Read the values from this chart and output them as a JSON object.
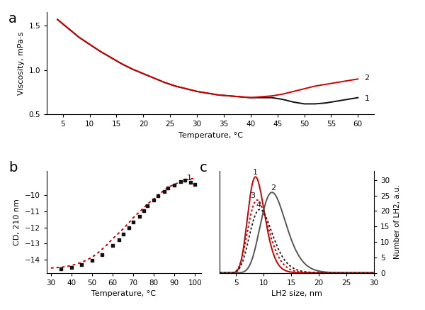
{
  "panel_a": {
    "label": "a",
    "temp_black": [
      4,
      6,
      8,
      10,
      12,
      14,
      16,
      18,
      20,
      22,
      24,
      26,
      28,
      30,
      32,
      34,
      36,
      38,
      40,
      42,
      44,
      46,
      48,
      50,
      52,
      54,
      56,
      58,
      60
    ],
    "visc_black": [
      1.57,
      1.47,
      1.37,
      1.29,
      1.21,
      1.14,
      1.07,
      1.01,
      0.96,
      0.91,
      0.86,
      0.82,
      0.79,
      0.76,
      0.74,
      0.72,
      0.71,
      0.7,
      0.69,
      0.69,
      0.69,
      0.67,
      0.64,
      0.62,
      0.62,
      0.63,
      0.65,
      0.67,
      0.69
    ],
    "temp_red": [
      4,
      6,
      8,
      10,
      12,
      14,
      16,
      18,
      20,
      22,
      24,
      26,
      28,
      30,
      32,
      34,
      36,
      38,
      40,
      42,
      44,
      46,
      48,
      50,
      52,
      54,
      56,
      58,
      60
    ],
    "visc_red": [
      1.57,
      1.47,
      1.37,
      1.29,
      1.21,
      1.14,
      1.07,
      1.01,
      0.96,
      0.91,
      0.86,
      0.82,
      0.79,
      0.76,
      0.74,
      0.72,
      0.71,
      0.7,
      0.69,
      0.7,
      0.71,
      0.73,
      0.76,
      0.79,
      0.82,
      0.84,
      0.86,
      0.88,
      0.9
    ],
    "xlabel": "Temperature, °C",
    "ylabel": "Viscosity, mPa·s",
    "xlim": [
      2,
      63
    ],
    "ylim": [
      0.5,
      1.65
    ],
    "xticks": [
      5,
      10,
      15,
      20,
      25,
      30,
      35,
      40,
      45,
      50,
      55,
      60
    ],
    "yticks": [
      0.5,
      1.0,
      1.5
    ],
    "line1_label": "1",
    "line2_label": "2"
  },
  "panel_b": {
    "label": "b",
    "temp_dots": [
      35,
      40,
      45,
      50,
      55,
      60,
      63,
      65,
      68,
      70,
      73,
      75,
      77,
      80,
      82,
      85,
      87,
      90,
      93,
      95,
      98,
      100
    ],
    "cd_dots": [
      -14.55,
      -14.45,
      -14.3,
      -14.05,
      -13.7,
      -13.1,
      -12.75,
      -12.4,
      -12.0,
      -11.65,
      -11.3,
      -10.95,
      -10.65,
      -10.3,
      -10.05,
      -9.78,
      -9.55,
      -9.38,
      -9.18,
      -9.08,
      -9.22,
      -9.35
    ],
    "temp_fit": [
      30,
      33,
      36,
      39,
      42,
      45,
      48,
      51,
      54,
      57,
      60,
      63,
      65,
      68,
      70,
      73,
      75,
      77,
      80,
      82,
      85,
      87,
      90,
      93,
      95,
      98,
      100
    ],
    "cd_fit": [
      -14.5,
      -14.48,
      -14.44,
      -14.38,
      -14.28,
      -14.15,
      -13.98,
      -13.75,
      -13.45,
      -13.1,
      -12.7,
      -12.35,
      -12.1,
      -11.7,
      -11.4,
      -11.05,
      -10.8,
      -10.55,
      -10.25,
      -10.0,
      -9.72,
      -9.52,
      -9.35,
      -9.18,
      -9.08,
      -9.0,
      -8.97
    ],
    "xlabel": "Temperature, °C",
    "ylabel": "CD, 210 nm",
    "xlim": [
      28,
      103
    ],
    "ylim": [
      -14.8,
      -8.5
    ],
    "xticks": [
      30,
      40,
      50,
      60,
      70,
      80,
      90,
      100
    ],
    "yticks": [
      -14,
      -13,
      -12,
      -11,
      -10
    ],
    "line1_label": "1"
  },
  "panel_c": {
    "label": "c",
    "xlabel": "LH2 size, nm",
    "ylabel_right": "Number of LH2, a.u.",
    "xlim": [
      2,
      30
    ],
    "ylim": [
      0,
      33
    ],
    "xticks": [
      5,
      10,
      15,
      20,
      25,
      30
    ],
    "yticks": [
      0,
      5,
      10,
      15,
      20,
      25,
      30
    ],
    "curve1": {
      "color": "#cc0000",
      "style": "solid",
      "peak": 8.5,
      "sigma": 0.18,
      "height": 31.0,
      "label": "1"
    },
    "curve2": {
      "color": "#555555",
      "style": "solid",
      "peak": 11.5,
      "sigma": 0.2,
      "height": 26.0,
      "label": "2"
    },
    "curve3": {
      "color": "#cc0000",
      "style": "dotted",
      "peak": 8.8,
      "sigma": 0.21,
      "height": 23.5,
      "label": "3"
    },
    "curve4": {
      "color": "#222222",
      "style": "dotted",
      "peak": 9.3,
      "sigma": 0.22,
      "height": 20.5,
      "label": "4"
    }
  },
  "bg_color": "#ffffff",
  "black_color": "#111111",
  "red_color": "#cc0000",
  "gray_color": "#555555"
}
